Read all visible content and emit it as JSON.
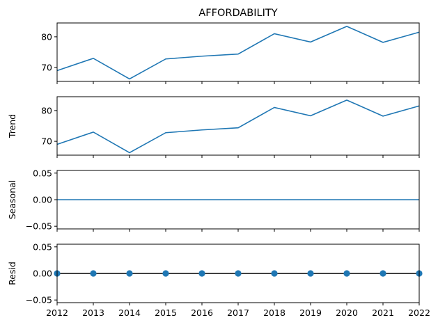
{
  "chart_data": [
    {
      "type": "line",
      "title": "AFFORDABILITY",
      "ylabel": "",
      "x": [
        2012,
        2013,
        2014,
        2015,
        2016,
        2017,
        2018,
        2019,
        2020,
        2021,
        2022
      ],
      "series": [
        {
          "values": [
            69.0,
            73.0,
            66.3,
            72.8,
            73.7,
            74.4,
            81.0,
            78.3,
            83.4,
            78.2,
            81.5
          ]
        }
      ],
      "ylim": [
        65.5,
        84.5
      ],
      "yticks": [
        70,
        80
      ],
      "xticklabels_visible": false
    },
    {
      "type": "line",
      "title": "",
      "ylabel": "Trend",
      "x": [
        2012,
        2013,
        2014,
        2015,
        2016,
        2017,
        2018,
        2019,
        2020,
        2021,
        2022
      ],
      "series": [
        {
          "values": [
            69.0,
            73.0,
            66.3,
            72.8,
            73.7,
            74.4,
            81.0,
            78.3,
            83.4,
            78.2,
            81.5
          ]
        }
      ],
      "ylim": [
        65.5,
        84.5
      ],
      "yticks": [
        70,
        80
      ],
      "xticklabels_visible": false
    },
    {
      "type": "line",
      "title": "",
      "ylabel": "Seasonal",
      "x": [
        2012,
        2013,
        2014,
        2015,
        2016,
        2017,
        2018,
        2019,
        2020,
        2021,
        2022
      ],
      "series": [
        {
          "values": [
            0,
            0,
            0,
            0,
            0,
            0,
            0,
            0,
            0,
            0,
            0
          ]
        }
      ],
      "ylim": [
        -0.055,
        0.055
      ],
      "yticks": [
        -0.05,
        0.0,
        0.05
      ],
      "ytick_labels": [
        "−0.05",
        "0.00",
        "0.05"
      ],
      "xticklabels_visible": false
    },
    {
      "type": "scatter",
      "title": "",
      "ylabel": "Resid",
      "x": [
        2012,
        2013,
        2014,
        2015,
        2016,
        2017,
        2018,
        2019,
        2020,
        2021,
        2022
      ],
      "series": [
        {
          "values": [
            0,
            0,
            0,
            0,
            0,
            0,
            0,
            0,
            0,
            0,
            0
          ]
        }
      ],
      "ylim": [
        -0.055,
        0.055
      ],
      "yticks": [
        -0.05,
        0.0,
        0.05
      ],
      "ytick_labels": [
        "−0.05",
        "0.00",
        "0.05"
      ],
      "zero_line": true,
      "xticklabels_visible": true,
      "xticklabels": [
        "2012",
        "2013",
        "2014",
        "2015",
        "2016",
        "2017",
        "2018",
        "2019",
        "2020",
        "2021",
        "2022"
      ]
    }
  ],
  "colors": {
    "series": "#1f77b4",
    "axis": "#000000",
    "zero_line": "#000000"
  }
}
